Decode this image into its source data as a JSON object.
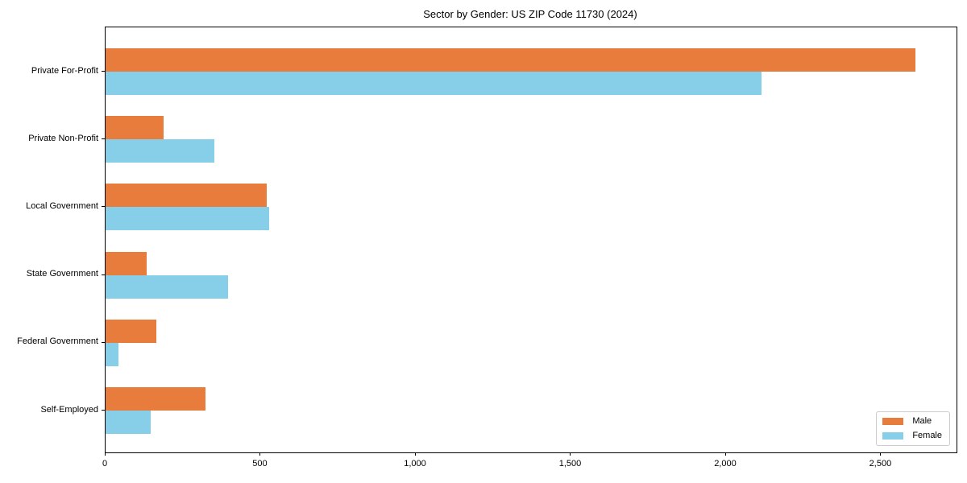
{
  "chart_data": {
    "type": "bar",
    "orientation": "horizontal",
    "title": "Sector by Gender: US ZIP Code 11730 (2024)",
    "categories": [
      "Private For-Profit",
      "Private Non-Profit",
      "Local Government",
      "State Government",
      "Federal Government",
      "Self-Employed"
    ],
    "series": [
      {
        "name": "Male",
        "color": "#e87c3c",
        "values": [
          2610,
          187,
          520,
          132,
          164,
          322
        ]
      },
      {
        "name": "Female",
        "color": "#87cee9",
        "values": [
          2114,
          351,
          527,
          394,
          41,
          146
        ]
      }
    ],
    "xlabel": "",
    "ylabel": "",
    "xlim": [
      0,
      2743
    ],
    "xticks": [
      {
        "value": 0,
        "label": "0"
      },
      {
        "value": 500,
        "label": "500"
      },
      {
        "value": 1000,
        "label": "1,000"
      },
      {
        "value": 1500,
        "label": "1,500"
      },
      {
        "value": 2000,
        "label": "2,000"
      },
      {
        "value": 2500,
        "label": "2,500"
      }
    ],
    "grid": false,
    "legend_position": "lower right",
    "axis_color": "#000000",
    "plot_background": "#ffffff"
  }
}
